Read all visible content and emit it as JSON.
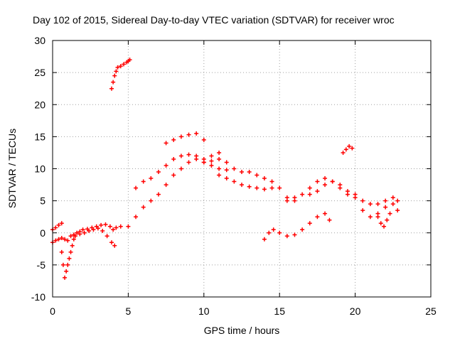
{
  "chart_data": {
    "type": "scatter",
    "title": "Day 102 of 2015, Sidereal Day-to-day VTEC variation (SDTVAR) for receiver wroc",
    "xlabel": "GPS time / hours",
    "ylabel": "SDTVAR / TECUs",
    "xlim": [
      0,
      25
    ],
    "ylim": [
      -10,
      30
    ],
    "xticks": [
      0,
      5,
      10,
      15,
      20,
      25
    ],
    "yticks": [
      -10,
      -5,
      0,
      5,
      10,
      15,
      20,
      25,
      30
    ],
    "grid": true,
    "marker": "+",
    "color": "#ff0000",
    "series": [
      {
        "name": "s1",
        "x": [
          0.0,
          0.2,
          0.4,
          0.6,
          0.8,
          1.0,
          1.2,
          1.4,
          1.6,
          1.8,
          2.0,
          2.3,
          2.6,
          2.9,
          3.2,
          3.5,
          3.8,
          4.0,
          4.2,
          4.5
        ],
        "y": [
          -1.5,
          -1.2,
          -1.0,
          -0.8,
          -1.0,
          -1.2,
          -0.5,
          -0.3,
          0.0,
          0.2,
          0.5,
          0.6,
          0.8,
          1.0,
          1.2,
          1.3,
          1.0,
          0.5,
          0.8,
          1.0
        ]
      },
      {
        "name": "s2",
        "x": [
          0.0,
          0.2,
          0.4,
          0.6
        ],
        "y": [
          0.5,
          0.8,
          1.2,
          1.5
        ]
      },
      {
        "name": "s3",
        "x": [
          0.6,
          0.7,
          0.8,
          0.9,
          1.0,
          1.1,
          1.2,
          1.3,
          1.4
        ],
        "y": [
          -3.0,
          -5.0,
          -7.0,
          -6.0,
          -5.0,
          -4.0,
          -3.0,
          -2.0,
          -1.0
        ]
      },
      {
        "name": "s4",
        "x": [
          1.5,
          1.8,
          2.1,
          2.4,
          2.7,
          3.0,
          3.3,
          3.6,
          3.9,
          4.1
        ],
        "y": [
          -0.5,
          -0.2,
          0.0,
          0.3,
          0.5,
          0.7,
          0.3,
          -0.5,
          -1.5,
          -2.0
        ]
      },
      {
        "name": "s5",
        "x": [
          3.9,
          4.0,
          4.1,
          4.2,
          4.3,
          4.5,
          4.7,
          4.9,
          5.0,
          5.1
        ],
        "y": [
          22.5,
          23.5,
          24.5,
          25.2,
          25.8,
          26.0,
          26.3,
          26.6,
          26.8,
          27.0
        ]
      },
      {
        "name": "s6",
        "x": [
          5.0,
          5.5,
          6.0,
          6.5,
          7.0,
          7.5,
          8.0,
          8.5,
          9.0,
          9.5,
          10.0,
          10.5,
          11.0,
          11.5
        ],
        "y": [
          1.0,
          2.5,
          4.0,
          5.0,
          6.0,
          7.5,
          9.0,
          10.0,
          11.0,
          11.5,
          11.0,
          11.2,
          11.5,
          11.0
        ]
      },
      {
        "name": "s7",
        "x": [
          5.5,
          6.0,
          6.5,
          7.0,
          7.5,
          8.0,
          8.5,
          9.0,
          9.5,
          10.0,
          10.5,
          11.0
        ],
        "y": [
          7.0,
          8.0,
          8.5,
          9.5,
          10.5,
          11.5,
          12.0,
          12.2,
          12.0,
          11.5,
          12.0,
          12.5
        ]
      },
      {
        "name": "s8",
        "x": [
          7.5,
          8.0,
          8.5,
          9.0,
          9.5,
          10.0
        ],
        "y": [
          14.0,
          14.5,
          15.0,
          15.3,
          15.5,
          14.5
        ]
      },
      {
        "name": "s9",
        "x": [
          10.0,
          10.5,
          11.0,
          11.5,
          12.0,
          12.5,
          13.0,
          13.5,
          14.0,
          14.5,
          15.0,
          15.5,
          16.0
        ],
        "y": [
          11.0,
          10.5,
          10.0,
          9.8,
          10.0,
          9.5,
          9.5,
          9.0,
          8.5,
          8.0,
          7.0,
          5.5,
          5.0
        ]
      },
      {
        "name": "s10",
        "x": [
          11.0,
          11.5,
          12.0,
          12.5,
          13.0,
          13.5,
          14.0,
          14.5
        ],
        "y": [
          9.0,
          8.5,
          8.0,
          7.5,
          7.2,
          7.0,
          6.8,
          7.0
        ]
      },
      {
        "name": "s11",
        "x": [
          14.0,
          14.3,
          14.6,
          15.0,
          15.5,
          16.0,
          16.5,
          17.0,
          17.5,
          18.0,
          18.3
        ],
        "y": [
          -1.0,
          0.0,
          0.5,
          0.0,
          -0.5,
          -0.3,
          0.5,
          1.5,
          2.5,
          3.0,
          2.0
        ]
      },
      {
        "name": "s12",
        "x": [
          15.5,
          16.0,
          16.5,
          17.0,
          17.5,
          18.0,
          18.5,
          19.0,
          19.5,
          20.0
        ],
        "y": [
          5.0,
          5.5,
          6.0,
          7.0,
          8.0,
          8.5,
          8.0,
          7.5,
          6.5,
          6.0
        ]
      },
      {
        "name": "s13",
        "x": [
          17.0,
          17.5,
          18.0,
          18.5,
          19.0,
          19.5
        ],
        "y": [
          6.0,
          6.5,
          7.5,
          8.0,
          7.0,
          6.0
        ]
      },
      {
        "name": "s14",
        "x": [
          19.2,
          19.4,
          19.6,
          19.8
        ],
        "y": [
          12.5,
          13.0,
          13.5,
          13.2
        ]
      },
      {
        "name": "s15",
        "x": [
          20.0,
          20.5,
          21.0,
          21.5,
          22.0,
          22.5,
          22.8
        ],
        "y": [
          5.5,
          5.0,
          4.5,
          4.5,
          5.0,
          5.5,
          5.0
        ]
      },
      {
        "name": "s16",
        "x": [
          20.5,
          21.0,
          21.5,
          22.0,
          22.5,
          22.8
        ],
        "y": [
          3.5,
          2.5,
          3.0,
          4.0,
          4.5,
          3.5
        ]
      },
      {
        "name": "s17",
        "x": [
          21.5,
          21.7,
          21.9,
          22.1,
          22.3
        ],
        "y": [
          2.5,
          1.5,
          1.0,
          2.0,
          3.0
        ]
      }
    ]
  }
}
